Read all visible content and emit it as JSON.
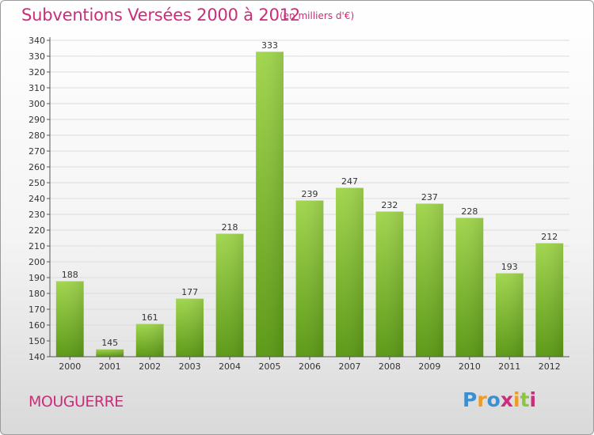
{
  "header": {
    "title": "Subventions Versées 2000 à 2012",
    "subtitle": "(en milliers d'€)"
  },
  "footer": {
    "place_name": "MOUGUERRE",
    "logo_text": "Proxiti"
  },
  "colors": {
    "title": "#cc2c7a",
    "bar_light": "#9fd34e",
    "bar_dark": "#5e9c18",
    "logo_letters": [
      "#3e8fd0",
      "#f29a1c",
      "#3e8fd0",
      "#cc2c7a",
      "#f29a1c",
      "#8cc63f",
      "#cc2c7a"
    ]
  },
  "chart_data": {
    "type": "bar",
    "title": "Subventions Versées 2000 à 2012",
    "subtitle": "(en milliers d'€)",
    "xlabel": "",
    "ylabel": "",
    "categories": [
      "2000",
      "2001",
      "2002",
      "2003",
      "2004",
      "2005",
      "2006",
      "2007",
      "2008",
      "2009",
      "2010",
      "2011",
      "2012"
    ],
    "values": [
      188,
      145,
      161,
      177,
      218,
      333,
      239,
      247,
      232,
      237,
      228,
      193,
      212
    ],
    "ylim": [
      140,
      340
    ],
    "ytick_step": 10,
    "grid": true,
    "legend": "none"
  }
}
